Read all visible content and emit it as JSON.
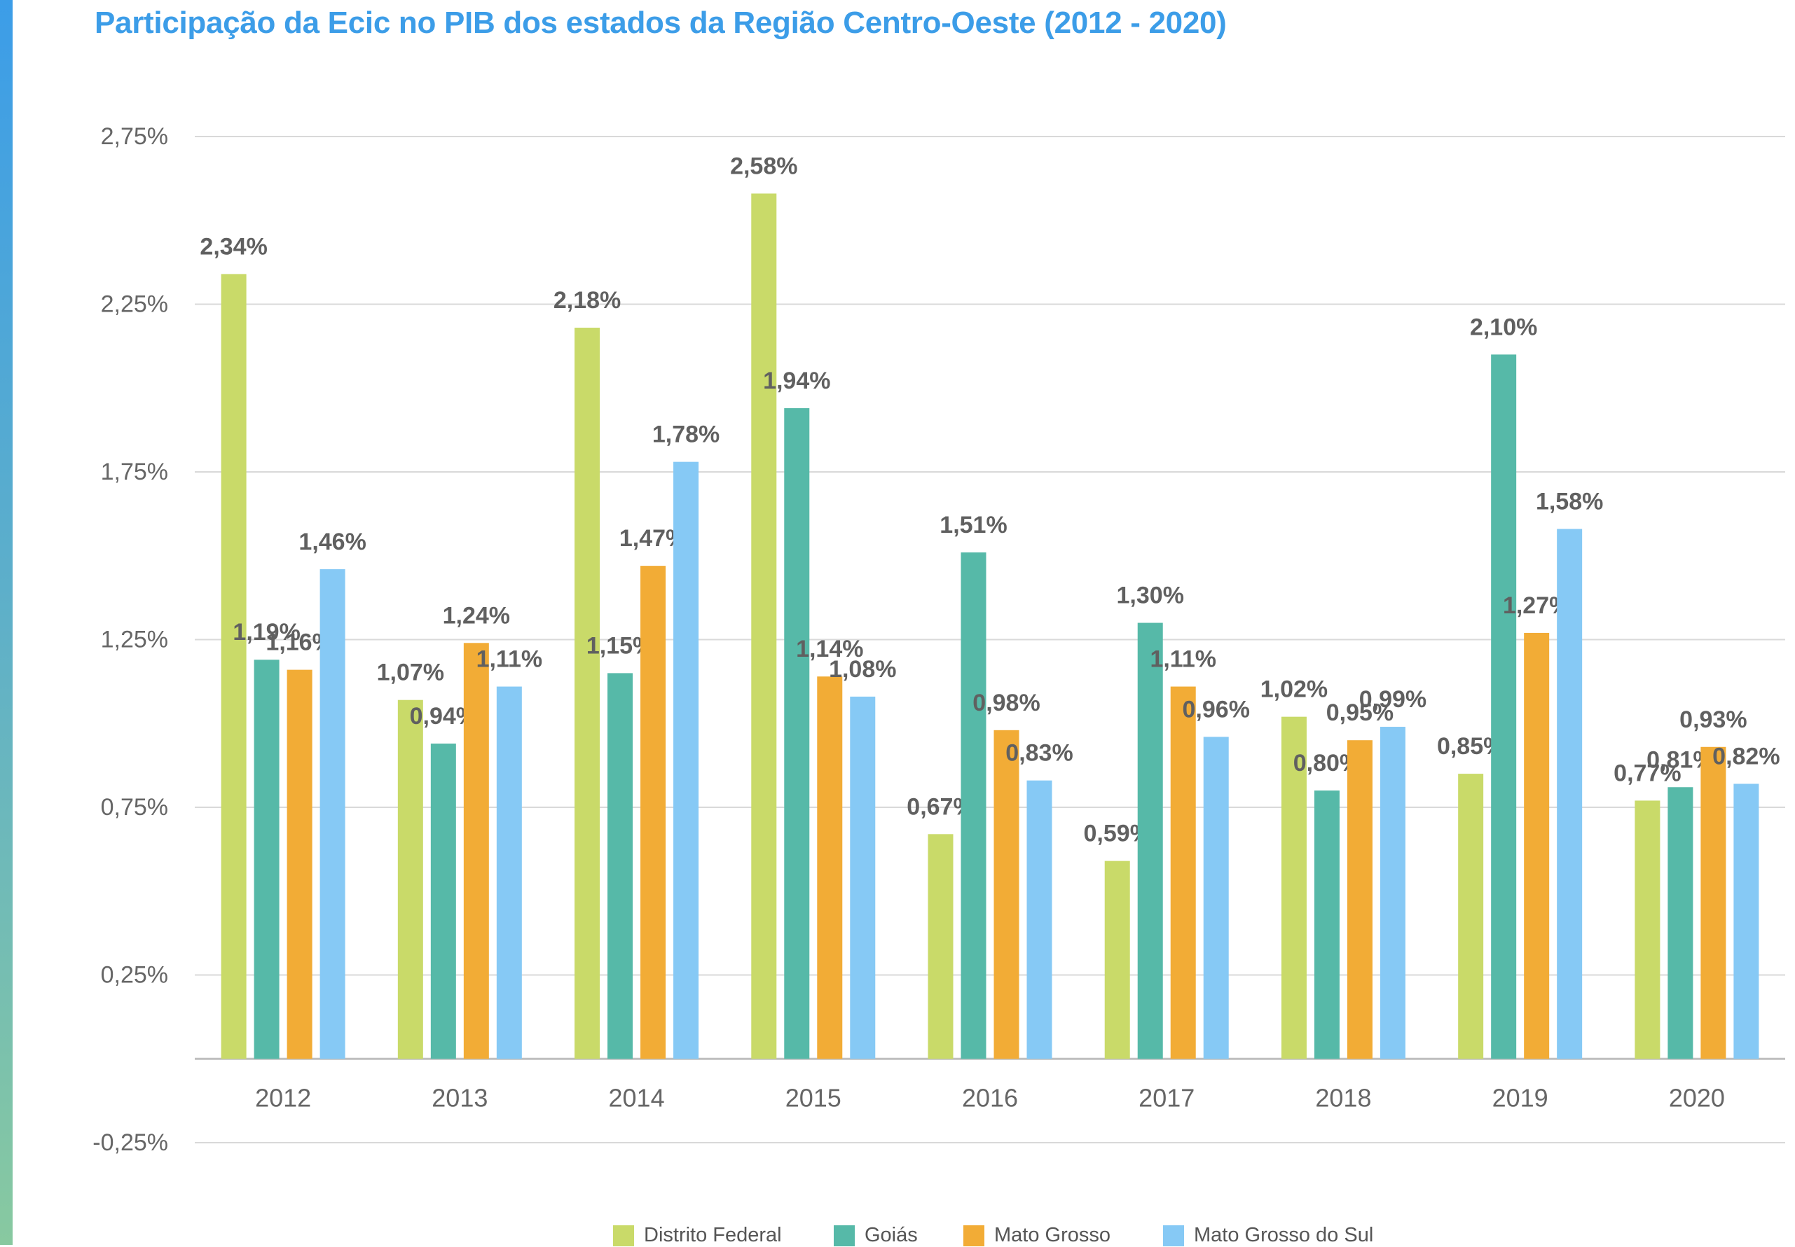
{
  "title": "Participação da Ecic no PIB dos estados da Região Centro-Oeste (2012 - 2020)",
  "colors": {
    "accent": "#3c9de8",
    "series": [
      "#c9da69",
      "#56b9a8",
      "#f2ac36",
      "#86c9f5"
    ],
    "grid": "#d9d9d9",
    "axis_text": "#666666",
    "data_label": "#606060"
  },
  "chart_data": {
    "type": "bar",
    "title": "Participação da Ecic no PIB dos estados da Região Centro-Oeste (2012 - 2020)",
    "xlabel": "",
    "ylabel": "",
    "ylim": [
      -0.25,
      2.75
    ],
    "yticks": [
      "-0,25%",
      "0,25%",
      "0,75%",
      "1,25%",
      "1,75%",
      "2,25%",
      "2,75%"
    ],
    "ytick_values": [
      -0.25,
      0.25,
      0.75,
      1.25,
      1.75,
      2.25,
      2.75
    ],
    "grid": true,
    "legend_position": "bottom-center",
    "categories": [
      "2012",
      "2013",
      "2014",
      "2015",
      "2016",
      "2017",
      "2018",
      "2019",
      "2020"
    ],
    "series": [
      {
        "name": "Distrito Federal",
        "values": [
          2.34,
          1.07,
          2.18,
          2.58,
          0.67,
          0.59,
          1.02,
          0.85,
          0.77
        ],
        "labels": [
          "2,34%",
          "1,07%",
          "2,18%",
          "2,58%",
          "0,67%",
          "0,59%",
          "1,02%",
          "0,85%",
          "0,77%"
        ]
      },
      {
        "name": "Goiás",
        "values": [
          1.19,
          0.94,
          1.15,
          1.94,
          1.51,
          1.3,
          0.8,
          2.1,
          0.81
        ],
        "labels": [
          "1,19%",
          "0,94%",
          "1,15%",
          "1,94%",
          "1,51%",
          "1,30%",
          "0,80%",
          "2,10%",
          "0,81%"
        ]
      },
      {
        "name": "Mato Grosso",
        "values": [
          1.16,
          1.24,
          1.47,
          1.14,
          0.98,
          1.11,
          0.95,
          1.27,
          0.93
        ],
        "labels": [
          "1,16%",
          "1,24%",
          "1,47%",
          "1,14%",
          "0,98%",
          "1,11%",
          "0,95%",
          "1,27%",
          "0,93%"
        ]
      },
      {
        "name": "Mato Grosso do Sul",
        "values": [
          1.46,
          1.11,
          1.78,
          1.08,
          0.83,
          0.96,
          0.99,
          1.58,
          0.82
        ],
        "labels": [
          "1,46%",
          "1,11%",
          "1,78%",
          "1,08%",
          "0,83%",
          "0,96%",
          "0,99%",
          "1,58%",
          "0,82%"
        ]
      }
    ]
  }
}
